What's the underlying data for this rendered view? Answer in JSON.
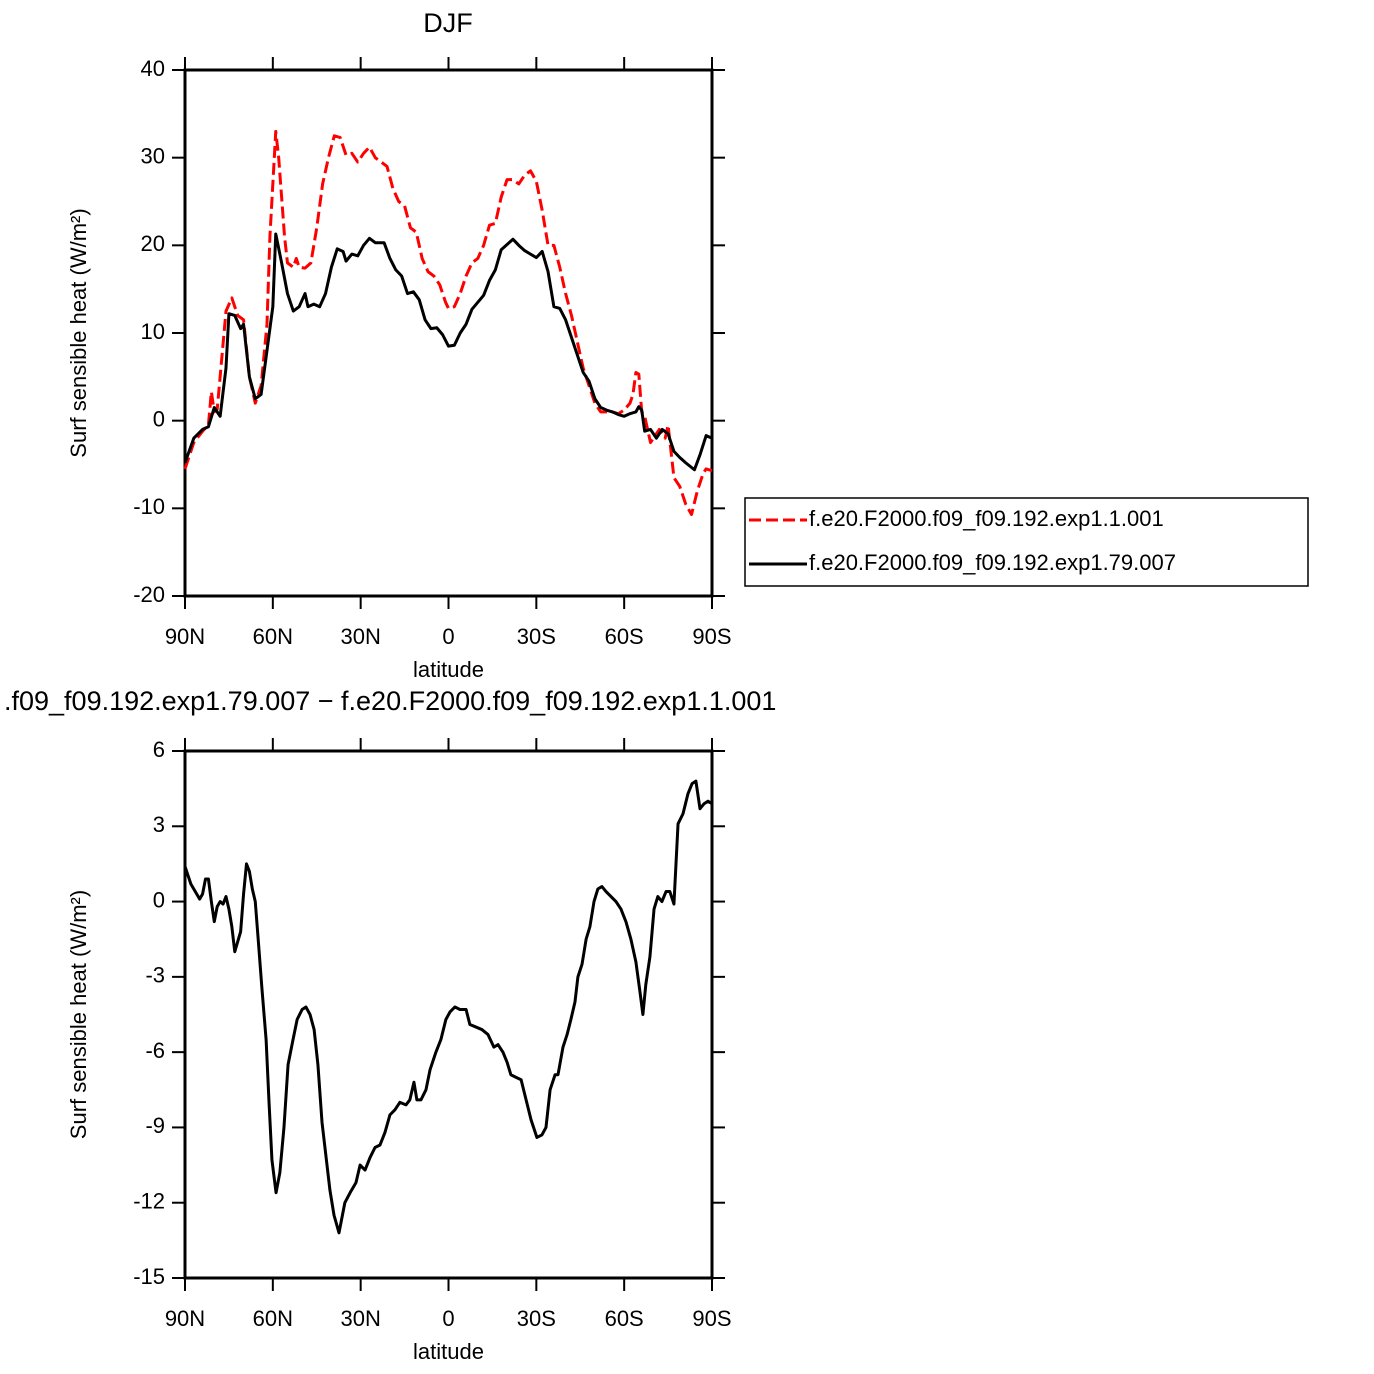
{
  "chart_data": [
    {
      "type": "line",
      "title": "DJF",
      "xlabel": "latitude",
      "ylabel": "Surf sensible heat (W/m²)",
      "xlim": [
        90,
        -90
      ],
      "xticks": [
        {
          "value": 90,
          "label": "90N"
        },
        {
          "value": 60,
          "label": "60N"
        },
        {
          "value": 30,
          "label": "30N"
        },
        0,
        {
          "value": -30,
          "label": "30S"
        },
        {
          "value": -60,
          "label": "60S"
        },
        {
          "value": -90,
          "label": "90S"
        }
      ],
      "ylim": [
        -20,
        40
      ],
      "yticks": [
        -20,
        -10,
        0,
        10,
        20,
        30,
        40
      ],
      "legend": "right",
      "series": [
        {
          "name": "f.e20.F2000.f09_f09.192.exp1.1.001",
          "color": "#ff0000",
          "style": "dashed",
          "x": [
            90,
            87,
            84,
            82,
            81,
            80,
            79,
            78,
            76,
            74,
            72,
            70,
            68,
            66,
            64,
            62,
            61,
            59,
            58,
            56,
            55,
            53,
            52,
            51,
            49,
            47,
            45,
            43,
            41,
            39,
            37,
            35,
            33,
            31,
            29,
            27,
            25,
            23,
            21,
            19,
            17,
            15,
            13,
            11,
            9,
            7,
            5,
            3,
            1,
            0,
            -2,
            -4,
            -6,
            -8,
            -10,
            -12,
            -14,
            -16,
            -18,
            -20,
            -22,
            -24,
            -26,
            -28,
            -30,
            -32,
            -34,
            -36,
            -38,
            -40,
            -42,
            -44,
            -46,
            -48,
            -50,
            -52,
            -54,
            -56,
            -58,
            -60,
            -62,
            -63,
            -64,
            -65,
            -66,
            -67,
            -69,
            -71,
            -72,
            -74,
            -75,
            -77,
            -79,
            -81,
            -83,
            -85,
            -87,
            -88,
            -90
          ],
          "values": [
            -5.5,
            -2.5,
            -1.2,
            -0.5,
            3.3,
            1,
            1.3,
            5,
            12.5,
            14,
            12,
            11.5,
            5,
            2,
            4,
            11,
            21,
            33,
            30,
            21,
            18,
            17.5,
            18.5,
            17.5,
            17.4,
            18,
            22,
            27,
            30,
            32.5,
            32.3,
            30.3,
            30.5,
            29.5,
            30.5,
            31.2,
            30,
            29.5,
            29,
            26.5,
            25,
            24.5,
            22,
            21.5,
            18.5,
            17,
            16.5,
            15.5,
            13.5,
            12.8,
            13,
            14.5,
            16.5,
            18,
            18.5,
            20,
            22.3,
            22.5,
            25.5,
            27.5,
            27.5,
            27,
            28,
            28.5,
            27.3,
            24,
            20,
            20,
            17.5,
            14.5,
            12,
            9,
            6,
            4,
            2,
            1,
            1,
            1,
            0.8,
            1.2,
            2,
            3,
            5.5,
            5.3,
            1,
            0.5,
            -2.5,
            -1.5,
            -1,
            -2,
            -0.5,
            -6.5,
            -7.5,
            -9.5,
            -10.7,
            -8,
            -6,
            -5.5,
            -5.7
          ]
        },
        {
          "name": "f.e20.F2000.f09_f09.192.exp1.79.007",
          "color": "#000000",
          "style": "solid",
          "x": [
            90,
            87,
            84,
            82,
            80,
            78,
            76,
            75,
            73,
            71,
            70,
            68,
            66,
            64,
            62,
            60,
            59,
            57,
            55,
            53,
            51,
            49,
            48,
            46,
            44,
            42,
            40,
            38,
            36,
            35,
            33,
            31,
            29,
            27,
            25,
            22,
            20,
            18,
            16,
            14,
            12,
            10,
            8,
            6,
            4,
            2,
            0,
            -2,
            -4,
            -6,
            -8,
            -10,
            -12,
            -14,
            -16,
            -18,
            -20,
            -22,
            -24,
            -26,
            -28,
            -30,
            -32,
            -34,
            -36,
            -38,
            -40,
            -42,
            -44,
            -46,
            -48,
            -50,
            -52,
            -54,
            -56,
            -58,
            -60,
            -62,
            -64,
            -65,
            -66,
            -67,
            -69,
            -71,
            -73,
            -75,
            -77,
            -79,
            -81,
            -84,
            -86,
            -88,
            -90
          ],
          "values": [
            -4.8,
            -2,
            -1,
            -0.7,
            1.5,
            0.5,
            6,
            12.2,
            12,
            10.5,
            11,
            5,
            2.5,
            3,
            8,
            13,
            21.3,
            18,
            14.5,
            12.5,
            13,
            14.5,
            13,
            13.3,
            13,
            14.5,
            17.5,
            19.6,
            19.3,
            18.2,
            19,
            18.8,
            20,
            20.8,
            20.3,
            20.3,
            18.5,
            17.2,
            16.5,
            14.5,
            14.7,
            13.8,
            11.5,
            10.5,
            10.6,
            9.8,
            8.5,
            8.6,
            10,
            11,
            12.7,
            13.5,
            14.3,
            16,
            17.2,
            19.5,
            20.1,
            20.7,
            20,
            19.4,
            19,
            18.6,
            19.3,
            17,
            13,
            12.8,
            11.5,
            9.5,
            7.5,
            5.5,
            4.5,
            2.5,
            1.5,
            1.2,
            1,
            0.7,
            0.5,
            0.8,
            1,
            1.6,
            1.2,
            -1.2,
            -1,
            -2,
            -1,
            -1.5,
            -3.5,
            -4.2,
            -4.8,
            -5.6,
            -3.8,
            -1.7,
            -2
          ]
        }
      ]
    },
    {
      "type": "line",
      "title": ".f09_f09.192.exp1.79.007 − f.e20.F2000.f09_f09.192.exp1.1.001",
      "xlabel": "latitude",
      "ylabel": "Surf sensible heat (W/m²)",
      "xlim": [
        90,
        -90
      ],
      "xticks": [
        {
          "value": 90,
          "label": "90N"
        },
        {
          "value": 60,
          "label": "60N"
        },
        {
          "value": 30,
          "label": "30N"
        },
        0,
        {
          "value": -30,
          "label": "30S"
        },
        {
          "value": -60,
          "label": "60S"
        },
        {
          "value": -90,
          "label": "90S"
        }
      ],
      "ylim": [
        -15,
        6
      ],
      "yticks": [
        -15,
        -12,
        -9,
        -6,
        -3,
        0,
        3,
        6
      ],
      "series": [
        {
          "color": "#000000",
          "style": "solid",
          "x": [
            90,
            88,
            86,
            85,
            84,
            83,
            82,
            81,
            80,
            79,
            78,
            77,
            76,
            75,
            74,
            73,
            72,
            71,
            70,
            69,
            68,
            67,
            66,
            65,
            63.7,
            62.3,
            61.3,
            60.3,
            58.9,
            57.6,
            56.2,
            54.8,
            53.1,
            51.7,
            50,
            48.7,
            47.3,
            45.9,
            44.6,
            43.2,
            41.8,
            40.5,
            39.1,
            37.4,
            35.4,
            33.6,
            31.6,
            30.2,
            28.5,
            26.8,
            25.1,
            23.4,
            21.7,
            20,
            18.3,
            16.6,
            14.5,
            13.2,
            11.8,
            10.8,
            9.4,
            7.7,
            6.3,
            4.3,
            2.6,
            0.9,
            -0.5,
            -2.2,
            -3.9,
            -6,
            -7.3,
            -9.4,
            -11.4,
            -13.5,
            -15.5,
            -16.9,
            -18.6,
            -20,
            -21.3,
            -23,
            -24.8,
            -26.5,
            -28.2,
            -30.2,
            -31.9,
            -33.3,
            -34.7,
            -36.4,
            -37.4,
            -39.1,
            -40.5,
            -41.8,
            -43.2,
            -44.2,
            -45.6,
            -47,
            -48.3,
            -49.7,
            -51,
            -52.4,
            -53.8,
            -55.5,
            -57.2,
            -58.9,
            -60.6,
            -62.3,
            -64,
            -65.4,
            -66.4,
            -67.4,
            -68.8,
            -70.2,
            -71.5,
            -72.9,
            -74.3,
            -75.6,
            -77,
            -78.4,
            -80.1,
            -81.8,
            -83.2,
            -84.5,
            -85.9,
            -87.3,
            -88.6,
            -90
          ],
          "values": [
            1.4,
            0.7,
            0.3,
            0.1,
            0.3,
            0.9,
            0.9,
            0,
            -0.8,
            -0.2,
            0,
            -0.1,
            0.2,
            -0.3,
            -1,
            -2,
            -1.6,
            -1.2,
            0.3,
            1.5,
            1.2,
            0.5,
            0,
            -1.5,
            -3.5,
            -5.5,
            -8,
            -10.3,
            -11.6,
            -10.8,
            -9,
            -6.5,
            -5.5,
            -4.7,
            -4.3,
            -4.2,
            -4.5,
            -5.1,
            -6.5,
            -8.8,
            -10.2,
            -11.5,
            -12.5,
            -13.2,
            -12,
            -11.6,
            -11.2,
            -10.5,
            -10.7,
            -10.2,
            -9.8,
            -9.7,
            -9.2,
            -8.5,
            -8.3,
            -8,
            -8.1,
            -7.9,
            -7.2,
            -7.9,
            -7.9,
            -7.5,
            -6.7,
            -6,
            -5.5,
            -4.7,
            -4.4,
            -4.2,
            -4.3,
            -4.3,
            -4.9,
            -5,
            -5.1,
            -5.3,
            -5.8,
            -5.7,
            -6,
            -6.4,
            -6.9,
            -7,
            -7.1,
            -7.9,
            -8.7,
            -9.4,
            -9.3,
            -9,
            -7.5,
            -6.9,
            -6.9,
            -5.8,
            -5.3,
            -4.7,
            -4,
            -3,
            -2.5,
            -1.5,
            -1,
            0,
            0.5,
            0.6,
            0.4,
            0.2,
            0,
            -0.3,
            -0.8,
            -1.5,
            -2.4,
            -3.6,
            -4.5,
            -3.3,
            -2.2,
            -0.3,
            0.2,
            0,
            0.4,
            0.4,
            -0.1,
            3.1,
            3.5,
            4.3,
            4.7,
            4.8,
            3.7,
            3.9,
            4,
            3.9
          ]
        }
      ]
    }
  ]
}
